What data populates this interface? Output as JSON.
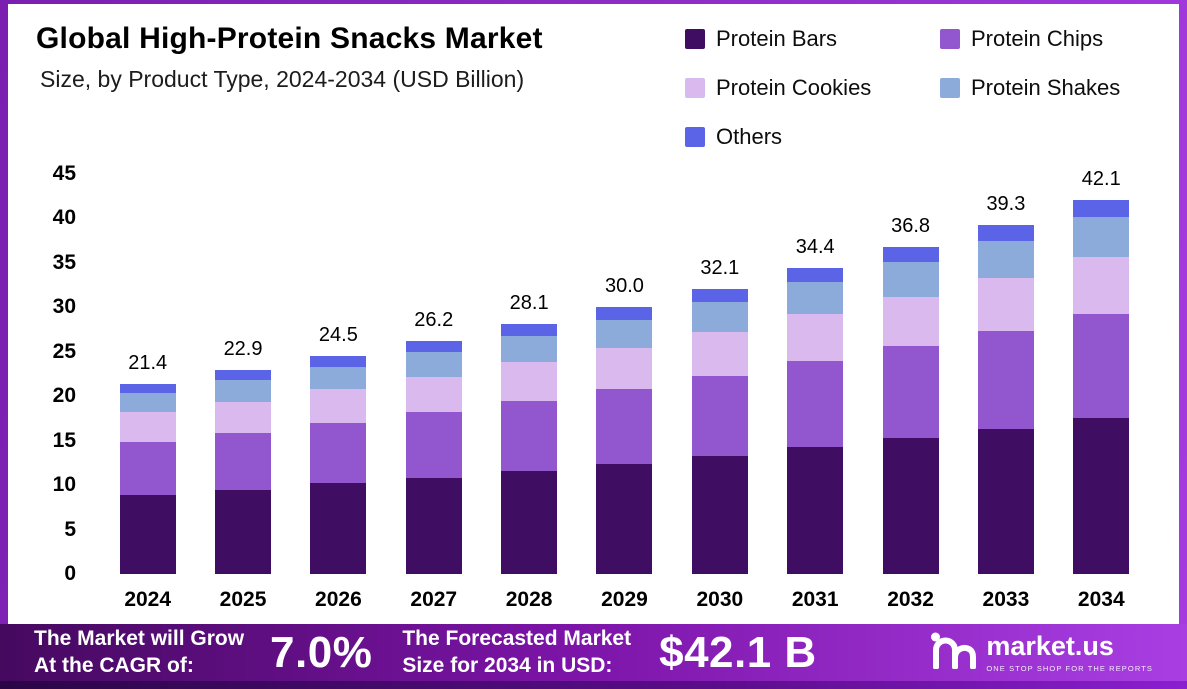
{
  "header": {
    "title": "Global High-Protein Snacks Market",
    "subtitle": "Size, by Product Type, 2024-2034 (USD Billion)"
  },
  "chart_data": {
    "type": "bar",
    "subtype": "stacked",
    "title": "Global High-Protein Snacks Market Size, by Product Type, 2024-2034 (USD Billion)",
    "categories": [
      "2024",
      "2025",
      "2026",
      "2027",
      "2028",
      "2029",
      "2030",
      "2031",
      "2032",
      "2033",
      "2034"
    ],
    "series": [
      {
        "name": "Protein Bars",
        "color": "#3f0e63",
        "values": [
          8.9,
          9.5,
          10.2,
          10.8,
          11.6,
          12.4,
          13.3,
          14.3,
          15.3,
          16.3,
          17.5
        ]
      },
      {
        "name": "Protein Chips",
        "color": "#9256cf",
        "values": [
          6.0,
          6.4,
          6.8,
          7.4,
          7.9,
          8.4,
          9.0,
          9.7,
          10.3,
          11.0,
          11.8
        ]
      },
      {
        "name": "Protein Cookies",
        "color": "#d9b9ee",
        "values": [
          3.3,
          3.5,
          3.8,
          4.0,
          4.3,
          4.6,
          4.9,
          5.3,
          5.6,
          6.0,
          6.4
        ]
      },
      {
        "name": "Protein Shakes",
        "color": "#8cabdb",
        "values": [
          2.2,
          2.4,
          2.5,
          2.8,
          3.0,
          3.2,
          3.4,
          3.6,
          3.9,
          4.2,
          4.5
        ]
      },
      {
        "name": "Others",
        "color": "#5b63e6",
        "values": [
          1.0,
          1.1,
          1.2,
          1.2,
          1.3,
          1.4,
          1.5,
          1.5,
          1.7,
          1.8,
          1.9
        ]
      }
    ],
    "totals": [
      "21.4",
      "22.9",
      "24.5",
      "26.2",
      "28.1",
      "30.0",
      "32.1",
      "34.4",
      "36.8",
      "39.3",
      "42.1"
    ],
    "xlabel": "",
    "ylabel": "",
    "ylim": [
      0,
      45
    ],
    "y_ticks": [
      0,
      5,
      10,
      15,
      20,
      25,
      30,
      35,
      40,
      45
    ],
    "grid": false,
    "legend_position": "top-right"
  },
  "banner": {
    "cagr_label_line1": "The Market will Grow",
    "cagr_label_line2": "At the CAGR of:",
    "cagr_value": "7.0%",
    "forecast_label_line1": "The Forecasted Market",
    "forecast_label_line2": "Size for 2034 in USD:",
    "forecast_value": "$42.1 B",
    "brand": "market.us",
    "brand_tagline": "One Stop Shop For The Reports"
  },
  "colors": {
    "banner_gradient_left": "#45095f",
    "banner_gradient_right": "#a93fe3",
    "frame_purple": "#7a1fb0"
  }
}
